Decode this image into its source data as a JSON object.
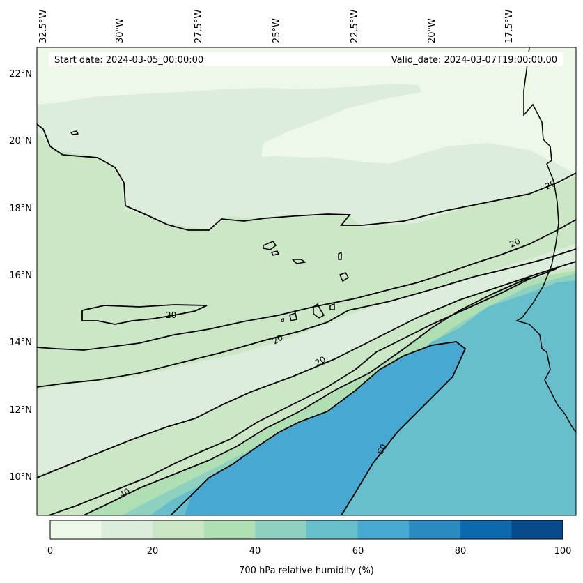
{
  "header": {
    "start_date": "Start date: 2024-03-05_00:00:00",
    "valid_date": "Valid_date: 2024-03-07T19:00:00.00"
  },
  "axes": {
    "lon_labels": [
      "32.5°W",
      "30°W",
      "27.5°W",
      "25°W",
      "22.5°W",
      "20°W",
      "17.5°W"
    ],
    "lat_labels": [
      "22°N",
      "20°N",
      "18°N",
      "16°N",
      "14°N",
      "12°N",
      "10°N"
    ]
  },
  "contour_labels": {
    "c20_a": "20",
    "c20_b": "20",
    "c20_c": "20",
    "c20_d": "20",
    "c20_e": "20",
    "c40": "40",
    "c60": "60"
  },
  "colorbar": {
    "title": "700 hPa relative humidity (%)",
    "ticks": [
      "0",
      "20",
      "40",
      "60",
      "80",
      "100"
    ],
    "levels": [
      0,
      10,
      20,
      30,
      40,
      50,
      60,
      70,
      80,
      90,
      100
    ],
    "colors": [
      "#eef8e8",
      "#dceedb",
      "#cbe7c6",
      "#b1dfb4",
      "#8fd1c1",
      "#67bfcb",
      "#47a8d1",
      "#2b8bc1",
      "#0e6aaf",
      "#084b8a"
    ]
  }
}
